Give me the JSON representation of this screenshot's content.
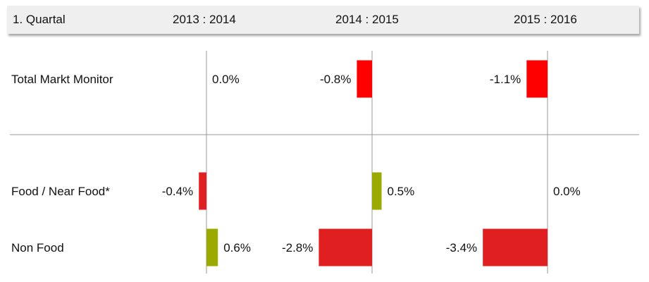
{
  "header": {
    "title": "1. Quartal",
    "periods": [
      "2013 : 2014",
      "2014 : 2015",
      "2015 : 2016"
    ]
  },
  "rows": [
    "Total Markt Monitor",
    "Food / Near Food*",
    "Non Food"
  ],
  "colors": {
    "negative": "#e02020",
    "negative_total": "#ff0000",
    "positive": "#9aaa00",
    "axis": "#999999"
  },
  "chart_data": {
    "type": "bar",
    "orientation": "horizontal",
    "title": "1. Quartal",
    "categories": [
      "Total Markt Monitor",
      "Food / Near Food*",
      "Non Food"
    ],
    "series": [
      {
        "name": "2013 : 2014",
        "values": [
          0.0,
          -0.4,
          0.6
        ],
        "labels": [
          "0.0%",
          "-0.4%",
          "0.6%"
        ]
      },
      {
        "name": "2014 : 2015",
        "values": [
          -0.8,
          0.5,
          -2.8
        ],
        "labels": [
          "-0.8%",
          "0.5%",
          "-2.8%"
        ]
      },
      {
        "name": "2015 : 2016",
        "values": [
          -1.1,
          0.0,
          -3.4
        ],
        "labels": [
          "-1.1%",
          "0.0%",
          "-3.4%"
        ]
      }
    ],
    "unit": "%"
  }
}
